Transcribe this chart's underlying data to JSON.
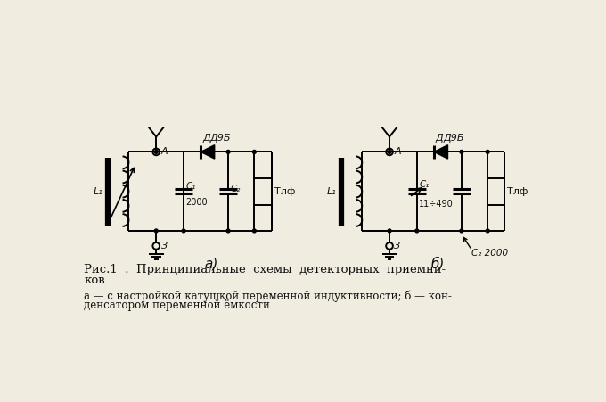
{
  "bg_color": "#f0ece0",
  "text_color": "#111111",
  "title1": "Рис.1  .  Принципиальные  схемы  детекторных  приемни-",
  "title2": "ков",
  "sub1": "а — с настройкой катушкой переменной индуктивности; б — кон-",
  "sub2": "денсатором переменной ёмкости"
}
